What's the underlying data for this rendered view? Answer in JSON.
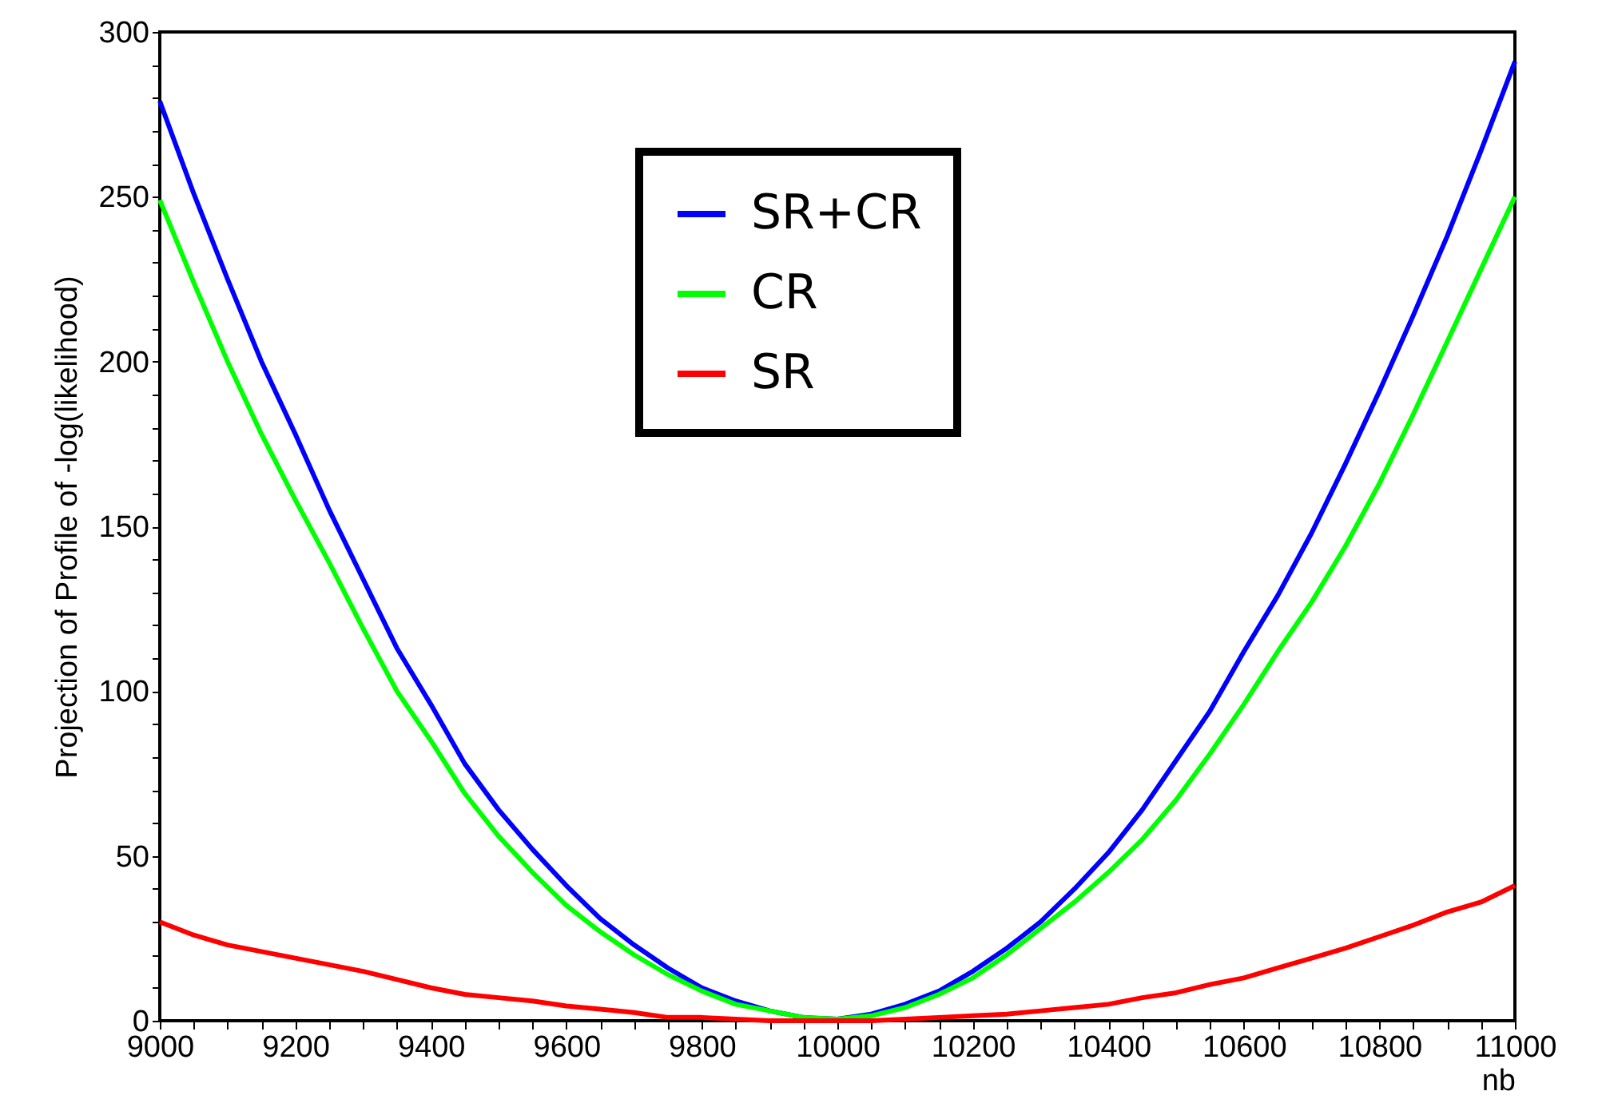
{
  "chart_data": {
    "type": "line",
    "xlabel": "nb",
    "ylabel": "Projection of Profile of -log(likelihood)",
    "xlim": [
      9000,
      11000
    ],
    "ylim": [
      0,
      300
    ],
    "xticks": [
      9000,
      {
        "value": 9050,
        "label": null
      },
      {
        "value": 9100,
        "label": null
      },
      {
        "value": 9150,
        "label": null
      },
      9200,
      {
        "value": 9250,
        "label": null
      },
      {
        "value": 9300,
        "label": null
      },
      {
        "value": 9350,
        "label": null
      },
      9400,
      {
        "value": 9450,
        "label": null
      },
      {
        "value": 9500,
        "label": null
      },
      {
        "value": 9550,
        "label": null
      },
      9600,
      {
        "value": 9650,
        "label": null
      },
      {
        "value": 9700,
        "label": null
      },
      {
        "value": 9750,
        "label": null
      },
      9800,
      {
        "value": 9850,
        "label": null
      },
      {
        "value": 9900,
        "label": null
      },
      {
        "value": 9950,
        "label": null
      },
      10000,
      {
        "value": 10050,
        "label": null
      },
      {
        "value": 10100,
        "label": null
      },
      {
        "value": 10150,
        "label": null
      },
      10200,
      {
        "value": 10250,
        "label": null
      },
      {
        "value": 10300,
        "label": null
      },
      {
        "value": 10350,
        "label": null
      },
      10400,
      {
        "value": 10450,
        "label": null
      },
      {
        "value": 10500,
        "label": null
      },
      {
        "value": 10550,
        "label": null
      },
      10600,
      {
        "value": 10650,
        "label": null
      },
      {
        "value": 10700,
        "label": null
      },
      {
        "value": 10750,
        "label": null
      },
      10800,
      {
        "value": 10850,
        "label": null
      },
      {
        "value": 10900,
        "label": null
      },
      {
        "value": 10950,
        "label": null
      },
      11000
    ],
    "yticks": [
      0,
      {
        "value": 10,
        "label": null
      },
      {
        "value": 20,
        "label": null
      },
      {
        "value": 30,
        "label": null
      },
      {
        "value": 40,
        "label": null
      },
      50,
      {
        "value": 60,
        "label": null
      },
      {
        "value": 70,
        "label": null
      },
      {
        "value": 80,
        "label": null
      },
      {
        "value": 90,
        "label": null
      },
      100,
      {
        "value": 110,
        "label": null
      },
      {
        "value": 120,
        "label": null
      },
      {
        "value": 130,
        "label": null
      },
      {
        "value": 140,
        "label": null
      },
      150,
      {
        "value": 160,
        "label": null
      },
      {
        "value": 170,
        "label": null
      },
      {
        "value": 180,
        "label": null
      },
      {
        "value": 190,
        "label": null
      },
      200,
      {
        "value": 210,
        "label": null
      },
      {
        "value": 220,
        "label": null
      },
      {
        "value": 230,
        "label": null
      },
      {
        "value": 240,
        "label": null
      },
      250,
      {
        "value": 260,
        "label": null
      },
      {
        "value": 270,
        "label": null
      },
      {
        "value": 280,
        "label": null
      },
      {
        "value": 290,
        "label": null
      },
      300
    ],
    "grid": false,
    "legend": "top",
    "marker": "none",
    "line_style": "solid",
    "x": [
      9000,
      9050,
      9100,
      9150,
      9200,
      9250,
      9300,
      9350,
      9400,
      9450,
      9500,
      9550,
      9600,
      9650,
      9700,
      9750,
      9800,
      9850,
      9900,
      9950,
      10000,
      10050,
      10100,
      10150,
      10200,
      10250,
      10300,
      10350,
      10400,
      10450,
      10500,
      10550,
      10600,
      10650,
      10700,
      10750,
      10800,
      10850,
      10900,
      10950,
      11000
    ],
    "series": [
      {
        "name": "SR+CR",
        "color": "#0000ff",
        "values": [
          279,
          251,
          225,
          200,
          178,
          155,
          134,
          113,
          96,
          78,
          64,
          52,
          41,
          31,
          23,
          16,
          10,
          6,
          3,
          1,
          0.5,
          2,
          5,
          9,
          15,
          22,
          30,
          40,
          51,
          64,
          79,
          94,
          112,
          129,
          148,
          169,
          191,
          214,
          238,
          264,
          291
        ]
      },
      {
        "name": "CR",
        "color": "#00ff00",
        "values": [
          249,
          224,
          200,
          178,
          158,
          139,
          119,
          100,
          85,
          69,
          56,
          45,
          35,
          27,
          20,
          14,
          9,
          5,
          3,
          1,
          0.5,
          1.5,
          4,
          8,
          13,
          20,
          28,
          36,
          45,
          55,
          67,
          81,
          96,
          112,
          127,
          144,
          163,
          184,
          206,
          228,
          250
        ]
      },
      {
        "name": "SR",
        "color": "#ff0000",
        "values": [
          30,
          26,
          23,
          21,
          19,
          17,
          15,
          12.5,
          10,
          8,
          7,
          6,
          4.5,
          3.5,
          2.5,
          1,
          1,
          0.5,
          0,
          0,
          0,
          0,
          0.5,
          1,
          1.5,
          2,
          3,
          4,
          5,
          7,
          8.5,
          11,
          13,
          16,
          19,
          22,
          25.5,
          29,
          33,
          36,
          41
        ]
      }
    ]
  }
}
